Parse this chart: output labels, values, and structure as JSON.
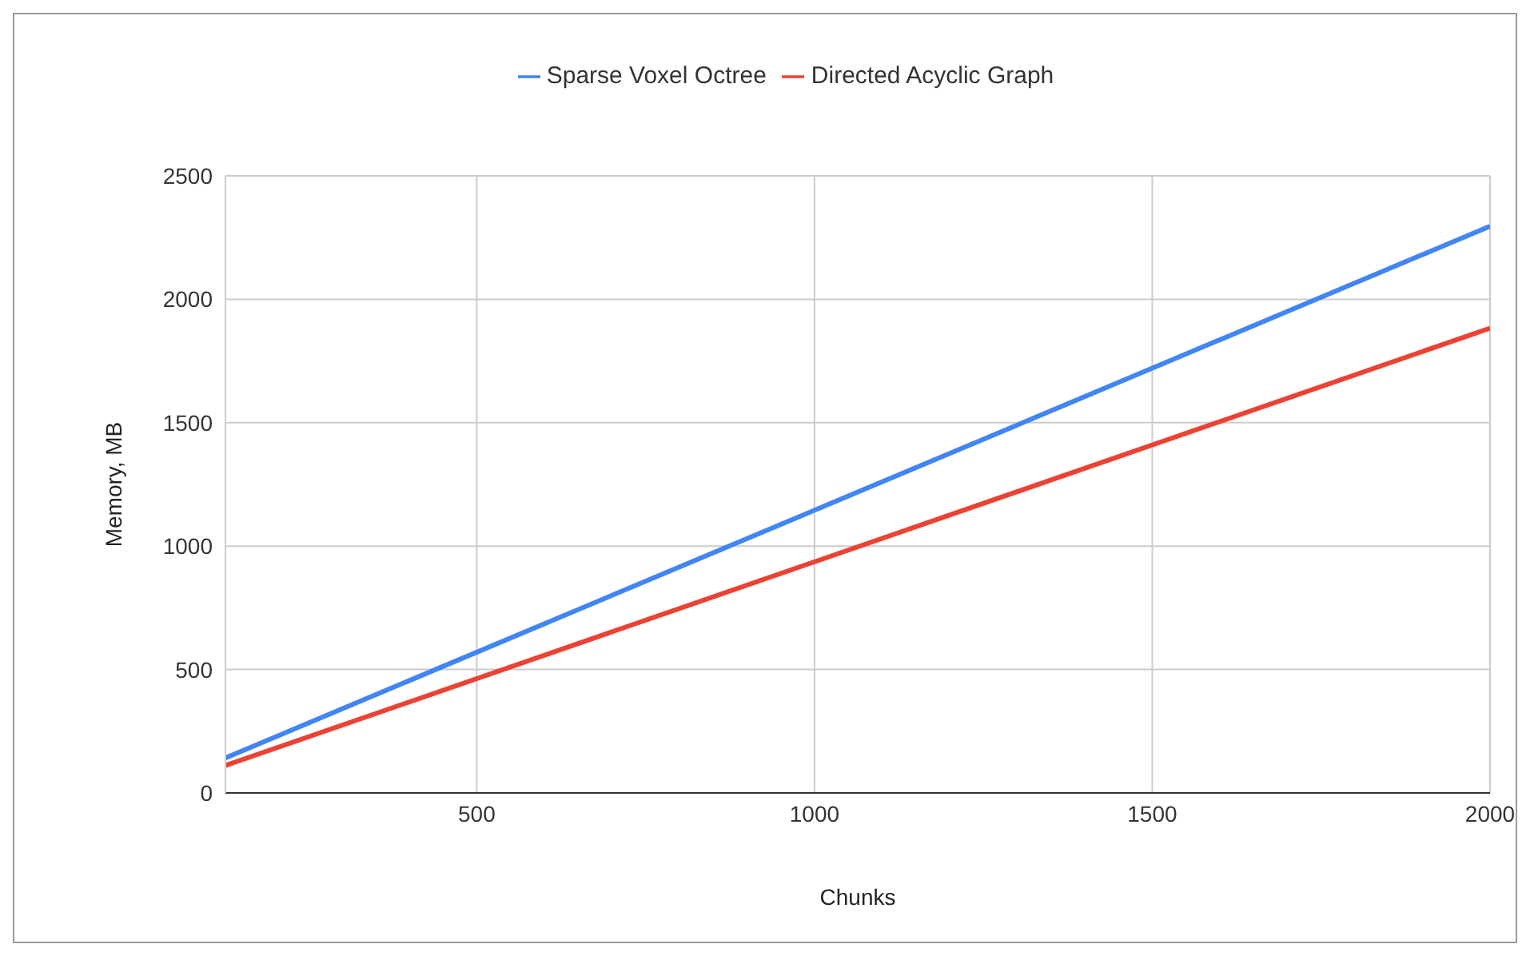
{
  "chart_data": {
    "type": "line",
    "xlabel": "Chunks",
    "ylabel": "Memory, MB",
    "x": [
      128,
      2000
    ],
    "series": [
      {
        "name": "Sparse Voxel Octree",
        "color": "#4285f4",
        "values": [
          142,
          2296
        ]
      },
      {
        "name": "Directed Acyclic Graph",
        "color": "#ea4335",
        "values": [
          111,
          1883
        ]
      }
    ],
    "xlim": [
      128,
      2000
    ],
    "xticks": [
      500,
      1000,
      1500,
      2000
    ],
    "ylim": [
      0,
      2500
    ],
    "yticks": [
      0,
      500,
      1000,
      1500,
      2000,
      2500
    ],
    "grid": true,
    "legend": "top",
    "marker": "none",
    "line_style": "solid"
  }
}
